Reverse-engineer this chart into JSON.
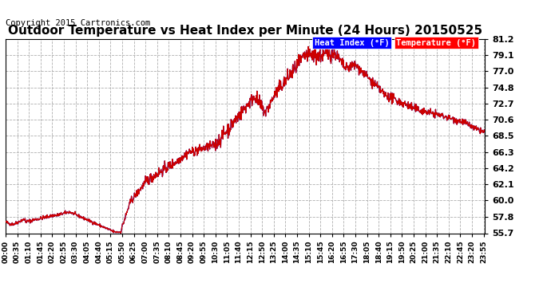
{
  "title": "Outdoor Temperature vs Heat Index per Minute (24 Hours) 20150525",
  "copyright": "Copyright 2015 Cartronics.com",
  "legend_heat_index": "Heat Index (°F)",
  "legend_temperature": "Temperature (°F)",
  "y_ticks": [
    55.7,
    57.8,
    60.0,
    62.1,
    64.2,
    66.3,
    68.5,
    70.6,
    72.7,
    74.8,
    77.0,
    79.1,
    81.2
  ],
  "ylim": [
    55.7,
    81.2
  ],
  "background_color": "#ffffff",
  "plot_bg_color": "#ffffff",
  "grid_color": "#b0b0b0",
  "line_color_temp": "#cc0000",
  "line_color_heat": "#0000dd",
  "title_fontsize": 11,
  "copyright_fontsize": 7.5,
  "x_tick_interval_minutes": 35
}
